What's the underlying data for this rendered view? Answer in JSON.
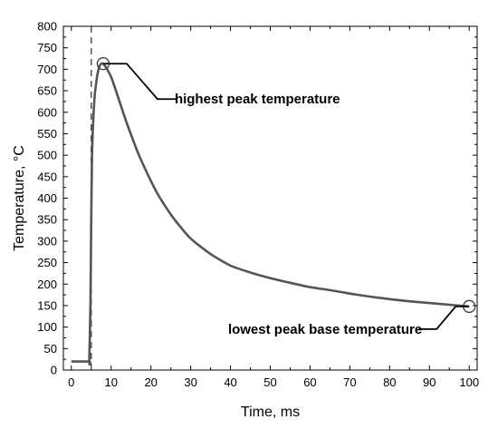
{
  "chart_data": {
    "type": "line",
    "xlabel": "Time, ms",
    "ylabel": "Temperature, °C",
    "xlim": [
      -2,
      102
    ],
    "ylim": [
      0,
      800
    ],
    "xticks": [
      0,
      10,
      20,
      30,
      40,
      50,
      60,
      70,
      80,
      90,
      100
    ],
    "yticks": [
      0,
      50,
      100,
      150,
      200,
      250,
      300,
      350,
      400,
      450,
      500,
      550,
      600,
      650,
      700,
      750,
      800
    ],
    "grid": false,
    "reference_line_x": 5,
    "series": [
      {
        "color": "#555555",
        "x": [
          0,
          4.5,
          4.5,
          4.8,
          5.0,
          5.2,
          5.5,
          5.8,
          6.0,
          6.5,
          7.0,
          7.5,
          8.0,
          8.5,
          9.0,
          10,
          11,
          12,
          13,
          14,
          15,
          17,
          20,
          22,
          25,
          27,
          30,
          35,
          40,
          45,
          50,
          55,
          60,
          65,
          70,
          75,
          80,
          85,
          90,
          95,
          100
        ],
        "y": [
          20,
          20,
          20,
          150,
          350,
          500,
          580,
          630,
          650,
          685,
          705,
          713,
          713,
          707,
          700,
          682,
          656,
          628,
          600,
          573,
          548,
          500,
          440,
          405,
          362,
          338,
          306,
          270,
          243,
          227,
          214,
          203,
          193,
          186,
          178,
          171,
          165,
          160,
          156,
          152,
          148
        ]
      }
    ],
    "annotations": [
      {
        "text": "highest peak temperature",
        "x": 8,
        "y": 713
      },
      {
        "text": "lowest peak base temperature",
        "x": 100,
        "y": 148
      }
    ]
  }
}
